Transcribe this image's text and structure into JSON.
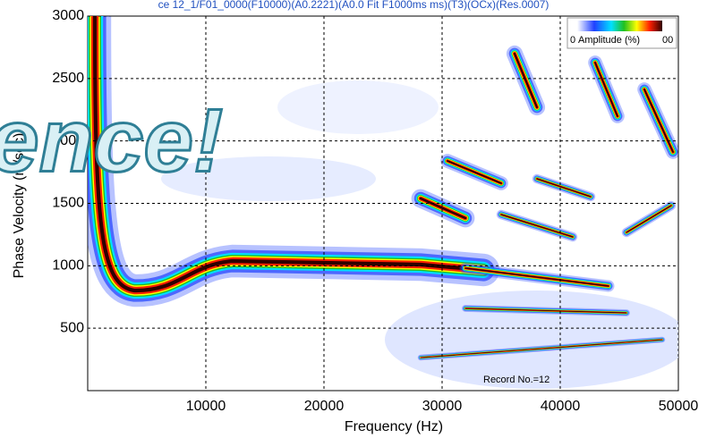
{
  "chart_data": {
    "type": "image",
    "title": "ce 12_1/F01_0000(F10000)(A0.2221)(A0.0 Fit F1000ms ms)(T3)(OCx)(Res.0007)",
    "x_label": "Frequency (Hz)",
    "y_label": "Phase Velocity (m/sec)",
    "xlim": [
      0,
      50000
    ],
    "xticks": [
      10000,
      20000,
      30000,
      40000,
      50000
    ],
    "ylim": [
      0,
      3000
    ],
    "yticks": [
      500,
      1000,
      1500,
      2000,
      2500,
      3000
    ],
    "grid": true,
    "legend": {
      "min": "0",
      "label": "Amplitude (%)",
      "max": "00"
    },
    "annotation": "Record No.=12",
    "overlay": "ence!"
  }
}
